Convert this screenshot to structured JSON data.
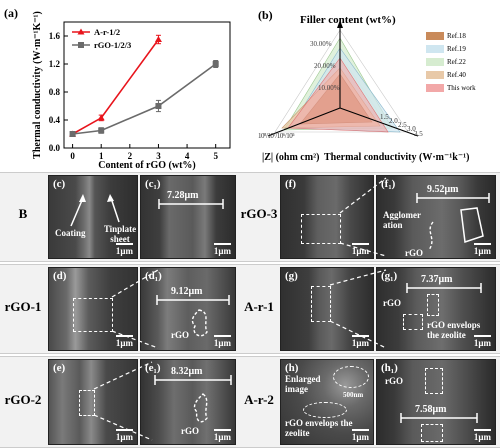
{
  "panel_a": {
    "label": "(a)",
    "ylabel": "Thermal conductivity (W·m⁻¹K⁻¹)",
    "xlabel": "Content of rGO (wt%)",
    "legend": [
      "A-r-1/2",
      "rGO-1/2/3"
    ]
  },
  "panel_b": {
    "label": "(b)",
    "top_axis": "Filler content (wt%)",
    "left_axis": "|Z| (ohm cm²)",
    "right_axis": "Thermal conductivity (W·m⁻¹k⁻¹)",
    "filler_ticks": [
      "30.00%",
      "20.00%",
      "10.00%"
    ],
    "z_ticks": [
      "10⁸",
      "10⁷",
      "10⁶",
      "10⁵"
    ],
    "tc_ticks": [
      "1.5",
      "2.0",
      "2.5",
      "3.0",
      "3.5"
    ],
    "legend": [
      "Ref.18",
      "Ref.19",
      "Ref.22",
      "Ref.40",
      "This work"
    ],
    "legend_colors": [
      "#c98a5a",
      "#cfe6f0",
      "#d6ecd0",
      "#e8c9a8",
      "#f2a8a8"
    ]
  },
  "chart_data": [
    {
      "type": "line",
      "title": "",
      "xlabel": "Content of rGO (wt%)",
      "ylabel": "Thermal conductivity (W·m⁻¹K⁻¹)",
      "xlim": [
        -0.3,
        5.5
      ],
      "ylim": [
        0,
        1.8
      ],
      "xticks": [
        0,
        1,
        2,
        3,
        4,
        5
      ],
      "yticks": [
        0.0,
        0.4,
        0.8,
        1.2,
        1.6
      ],
      "grid": false,
      "legend_position": "top-left",
      "series": [
        {
          "name": "A-r-1/2",
          "color": "#e8141c",
          "marker": "triangle",
          "x": [
            0,
            1,
            3
          ],
          "y": [
            0.2,
            0.43,
            1.55
          ],
          "err": [
            0.02,
            0.04,
            0.06
          ]
        },
        {
          "name": "rGO-1/2/3",
          "color": "#6b6b6b",
          "marker": "square",
          "x": [
            0,
            1,
            3,
            5
          ],
          "y": [
            0.2,
            0.25,
            0.6,
            1.2
          ],
          "err": [
            0.02,
            0.04,
            0.08,
            0.05
          ]
        }
      ]
    }
  ],
  "sem": {
    "rows": [
      "B",
      "rGO-1",
      "rGO-2"
    ],
    "rows_right": [
      "rGO-3",
      "A-r-1",
      "A-r-2"
    ],
    "tags": {
      "c": "(c)",
      "c1": "(c₁)",
      "d": "(d)",
      "d1": "(d₁)",
      "e": "(e)",
      "e1": "(e₁)",
      "f": "(f)",
      "f1": "(f₁)",
      "g": "(g)",
      "g1": "(g₁)",
      "h": "(h)",
      "h1": "(h₁)"
    },
    "scale": "1μm",
    "scale_h_inset": "500nm",
    "measures": {
      "c1": "7.28μm",
      "d1": "9.12μm",
      "e1": "8.32μm",
      "f1": "9.52μm",
      "g1": "7.37μm",
      "h1": "7.58μm"
    },
    "annotations": {
      "coating": "Coating",
      "tinplate": "Tinplate sheet",
      "agglomeration": "Agglomer ation",
      "rgo": "rGO",
      "rgo_env": "rGO envelops the zeolite",
      "enlarged": "Enlarged image"
    }
  }
}
